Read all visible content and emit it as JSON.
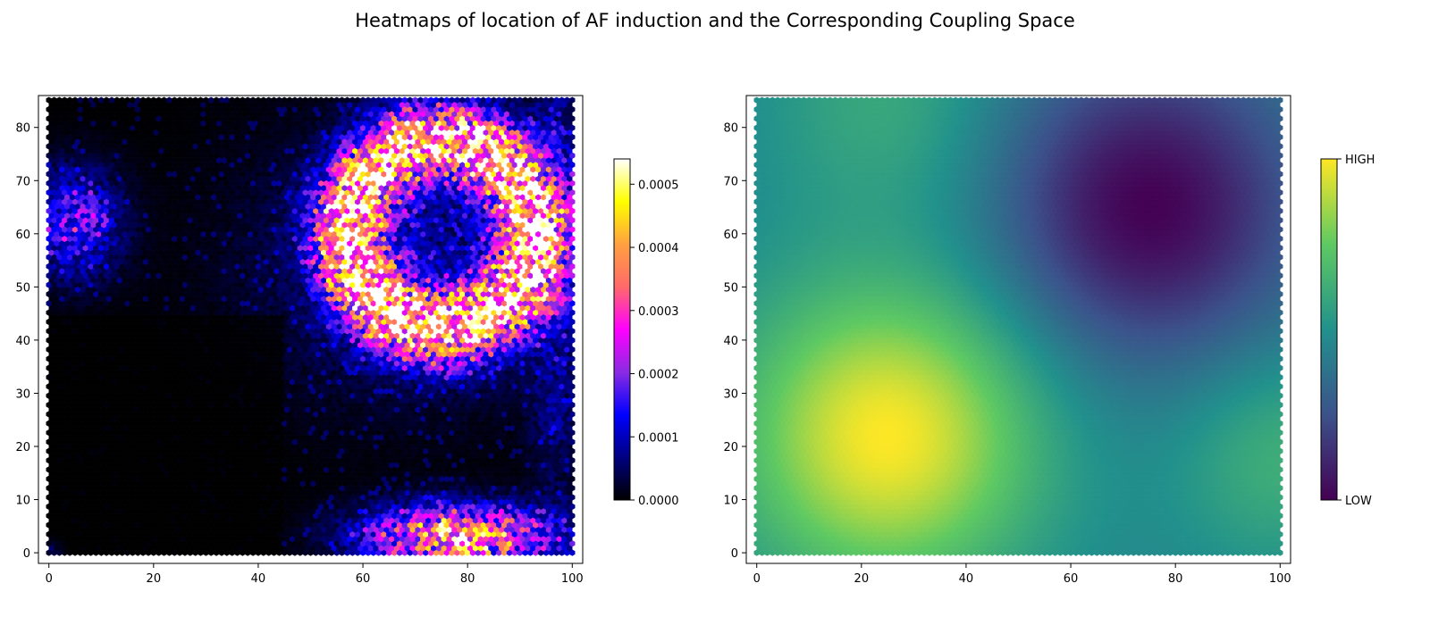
{
  "figure": {
    "title": "Heatmaps of location of AF induction and the Corresponding Coupling Space"
  },
  "chart_data": [
    {
      "type": "heatmap",
      "subtype": "hexbin",
      "title": "",
      "xlabel": "",
      "ylabel": "",
      "xlim": [
        -2,
        102
      ],
      "ylim": [
        -2,
        86
      ],
      "xticks": [
        0,
        20,
        40,
        60,
        80,
        100
      ],
      "yticks": [
        0,
        10,
        20,
        30,
        40,
        50,
        60,
        70,
        80
      ],
      "grid": false,
      "colormap": "gnuplot2",
      "colormap_colors": [
        "#000000",
        "#000080",
        "#0000ff",
        "#8a2be2",
        "#ff00ff",
        "#ff6a6a",
        "#ffa040",
        "#ffff00",
        "#ffffff"
      ],
      "colorbar": {
        "range": [
          0.0,
          0.00054
        ],
        "ticks": [
          0.0,
          0.0001,
          0.0002,
          0.0003,
          0.0004,
          0.0005
        ],
        "tick_labels": [
          "0.0000",
          "0.0001",
          "0.0002",
          "0.0003",
          "0.0004",
          "0.0005"
        ]
      },
      "description_of_density": "Ring-shaped high-density region centered near (75, 60) with inner radius ~10 and outer radius ~25; secondary band near y=0–8 for x 55–95; moderate cluster near (5, 62); near-zero density in lower-left region",
      "hotspots": [
        {
          "x": 75,
          "y": 60,
          "r_inner": 10,
          "r_outer": 25,
          "peak": 0.00045
        },
        {
          "x": 78,
          "y": 3,
          "sx": 12,
          "sy": 4,
          "peak": 0.0004
        },
        {
          "x": 5,
          "y": 62,
          "sx": 6,
          "sy": 7,
          "peak": 0.00018
        },
        {
          "x": 0,
          "y": 0,
          "sx": 1.5,
          "sy": 1.5,
          "peak": 0.00035
        }
      ]
    },
    {
      "type": "heatmap",
      "subtype": "hexbin",
      "title": "",
      "xlabel": "",
      "ylabel": "",
      "xlim": [
        -2,
        102
      ],
      "ylim": [
        -2,
        86
      ],
      "xticks": [
        0,
        20,
        40,
        60,
        80,
        100
      ],
      "yticks": [
        0,
        10,
        20,
        30,
        40,
        50,
        60,
        70,
        80
      ],
      "grid": false,
      "colormap": "viridis",
      "colormap_colors": [
        "#440154",
        "#3b528b",
        "#21918c",
        "#5ec962",
        "#fde725"
      ],
      "colorbar": {
        "range": [
          0,
          1
        ],
        "ticks": [
          0,
          1
        ],
        "tick_labels": [
          "LOW",
          "HIGH"
        ]
      },
      "field_terms": [
        {
          "x": 25,
          "y": 22,
          "sigma": 20,
          "amp": 0.55
        },
        {
          "x": 75,
          "y": 65,
          "sigma": 20,
          "amp": -0.45
        },
        {
          "x": 25,
          "y": 85,
          "sigma": 16,
          "amp": 0.15
        },
        {
          "x": 100,
          "y": 18,
          "sigma": 14,
          "amp": 0.18
        }
      ],
      "field_base": 0.45
    }
  ]
}
